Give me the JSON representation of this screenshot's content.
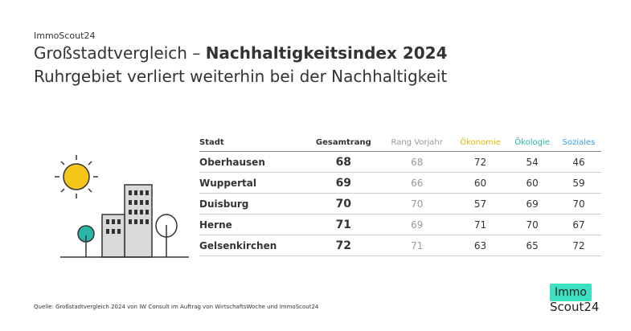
{
  "brand": "ImmoScout24",
  "title": {
    "prefix": "Großstadtvergleich –",
    "emphasis": "Nachhaltigkeitsindex 2024"
  },
  "subtitle": "Ruhrgebiet verliert weiterhin bei der Nachhaltigkeit",
  "table": {
    "columns": [
      "Stadt",
      "Gesamtrang",
      "Rang Vorjahr",
      "Ökonomie",
      "Ökologie",
      "Soziales"
    ],
    "rows": [
      [
        "Oberhausen",
        68,
        68,
        72,
        54,
        46
      ],
      [
        "Wuppertal",
        69,
        66,
        60,
        60,
        59
      ],
      [
        "Duisburg",
        70,
        70,
        57,
        69,
        70
      ],
      [
        "Herne",
        71,
        69,
        71,
        70,
        67
      ],
      [
        "Gelsenkirchen",
        72,
        71,
        63,
        65,
        72
      ]
    ]
  },
  "source": "Quelle: Großstadtvergleich 2024 von IW Consult im Auftrag von WirtschaftsWoche und ImmoScout24",
  "logo": {
    "top": "Immo",
    "bottom": "Scout24"
  }
}
